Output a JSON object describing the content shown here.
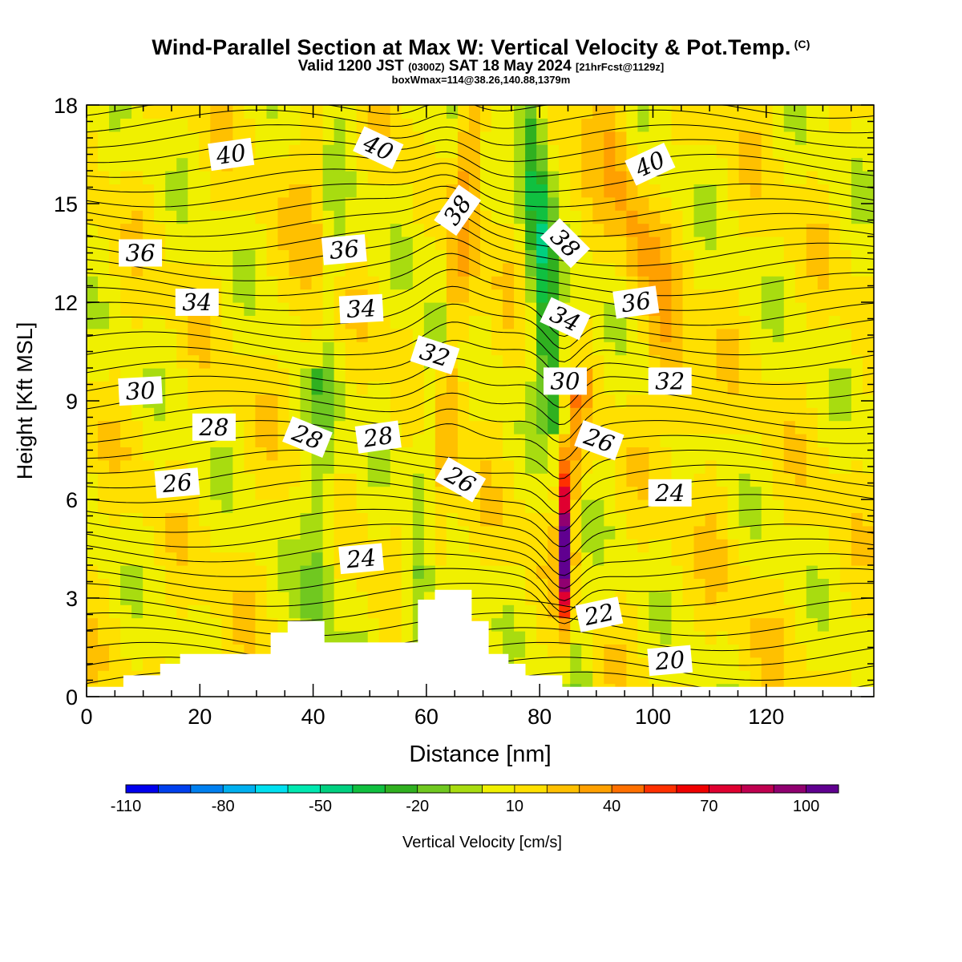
{
  "header": {
    "title": "Wind-Parallel Section at Max W: Vertical Velocity & Pot.Temp.",
    "title_mark": "(C)",
    "valid_a": "Valid 1200 JST",
    "valid_utc": "(0300Z)",
    "valid_b": "SAT 18 May 2024",
    "forecast": "[21hrFcst@1129z]",
    "boxwmax": "boxWmax=114@38.26,140.88,1379m"
  },
  "chart_data": {
    "type": "heatmap",
    "xlabel": "Distance [nm]",
    "ylabel": "Height [Kft MSL]",
    "xlim": [
      0,
      139
    ],
    "ylim": [
      0,
      18
    ],
    "x_ticks": [
      0,
      20,
      40,
      60,
      80,
      100,
      120
    ],
    "y_ticks": [
      0,
      3,
      6,
      9,
      12,
      15,
      18
    ],
    "colorbar": {
      "label": "Vertical Velocity [cm/s]",
      "range": [
        -110,
        120
      ],
      "step": 10,
      "tick_labels": [
        -110,
        -80,
        -50,
        -20,
        10,
        40,
        70,
        100
      ],
      "colors": [
        "#0000ee",
        "#0040ee",
        "#0080f0",
        "#00b0f0",
        "#00e0f0",
        "#00e8b0",
        "#00d080",
        "#10c040",
        "#30b020",
        "#70c820",
        "#a8dc10",
        "#f0f000",
        "#ffe000",
        "#ffc000",
        "#ffa000",
        "#ff7000",
        "#ff3000",
        "#f00000",
        "#e00030",
        "#c00050",
        "#900070",
        "#600090"
      ]
    },
    "vertical_velocity_features": [
      {
        "x": 84.5,
        "height": 4.5,
        "w": 114,
        "kind": "max updraft"
      },
      {
        "x": 66,
        "height": 12,
        "w": 30,
        "kind": "updraft band"
      },
      {
        "x": 60,
        "height": 7,
        "w": -30,
        "kind": "downdraft band"
      },
      {
        "x": 40,
        "height": 6,
        "w": -20,
        "kind": "downdraft band"
      },
      {
        "x": 83,
        "height": 14,
        "w": -40,
        "kind": "downdraft band"
      },
      {
        "x": 42,
        "height": 15,
        "w": 25,
        "kind": "updraft band"
      }
    ],
    "terrain_profile": [
      [
        0,
        0.3
      ],
      [
        6.5,
        0.3
      ],
      [
        6.5,
        0.65
      ],
      [
        13,
        0.65
      ],
      [
        13,
        1.0
      ],
      [
        16.5,
        1.0
      ],
      [
        16.5,
        1.3
      ],
      [
        32.5,
        1.3
      ],
      [
        32.5,
        1.95
      ],
      [
        35.5,
        1.95
      ],
      [
        35.5,
        2.3
      ],
      [
        42,
        2.3
      ],
      [
        42,
        1.65
      ],
      [
        58.5,
        1.65
      ],
      [
        58.5,
        2.95
      ],
      [
        61.5,
        2.95
      ],
      [
        61.5,
        3.25
      ],
      [
        68,
        3.25
      ],
      [
        68,
        2.3
      ],
      [
        71,
        2.3
      ],
      [
        71,
        1.3
      ],
      [
        74.5,
        1.3
      ],
      [
        74.5,
        1.0
      ],
      [
        77.5,
        1.0
      ],
      [
        77.5,
        0.65
      ],
      [
        84,
        0.65
      ],
      [
        84,
        0.3
      ],
      [
        139,
        0.3
      ]
    ],
    "isentrope_labels": [
      {
        "text": "40",
        "x": 25.5,
        "y": 16.5,
        "angle": -8
      },
      {
        "text": "40",
        "x": 51.5,
        "y": 16.7,
        "angle": 25
      },
      {
        "text": "40",
        "x": 99.5,
        "y": 16.2,
        "angle": -25
      },
      {
        "text": "38",
        "x": 65.5,
        "y": 14.8,
        "angle": -55
      },
      {
        "text": "38",
        "x": 84.5,
        "y": 13.8,
        "angle": 45
      },
      {
        "text": "36",
        "x": 9.5,
        "y": 13.5,
        "angle": 0
      },
      {
        "text": "36",
        "x": 45.5,
        "y": 13.6,
        "angle": -5
      },
      {
        "text": "36",
        "x": 97,
        "y": 12.0,
        "angle": -8
      },
      {
        "text": "34",
        "x": 19.5,
        "y": 12.0,
        "angle": 0
      },
      {
        "text": "34",
        "x": 48.5,
        "y": 11.8,
        "angle": -3
      },
      {
        "text": "34",
        "x": 84.5,
        "y": 11.5,
        "angle": 25
      },
      {
        "text": "32",
        "x": 61.5,
        "y": 10.4,
        "angle": 18
      },
      {
        "text": "32",
        "x": 103,
        "y": 9.6,
        "angle": 0
      },
      {
        "text": "30",
        "x": 9.5,
        "y": 9.3,
        "angle": -3
      },
      {
        "text": "30",
        "x": 84.5,
        "y": 9.6,
        "angle": 0
      },
      {
        "text": "28",
        "x": 22.5,
        "y": 8.2,
        "angle": 0
      },
      {
        "text": "28",
        "x": 39,
        "y": 7.9,
        "angle": 22
      },
      {
        "text": "28",
        "x": 51.5,
        "y": 7.9,
        "angle": -8
      },
      {
        "text": "26",
        "x": 16,
        "y": 6.5,
        "angle": -5
      },
      {
        "text": "26",
        "x": 66,
        "y": 6.6,
        "angle": 30
      },
      {
        "text": "26",
        "x": 90.5,
        "y": 7.8,
        "angle": 20
      },
      {
        "text": "24",
        "x": 48.5,
        "y": 4.2,
        "angle": -5
      },
      {
        "text": "24",
        "x": 103,
        "y": 6.2,
        "angle": 0
      },
      {
        "text": "22",
        "x": 90.5,
        "y": 2.5,
        "angle": -12
      },
      {
        "text": "20",
        "x": 103,
        "y": 1.1,
        "angle": -5
      }
    ]
  }
}
